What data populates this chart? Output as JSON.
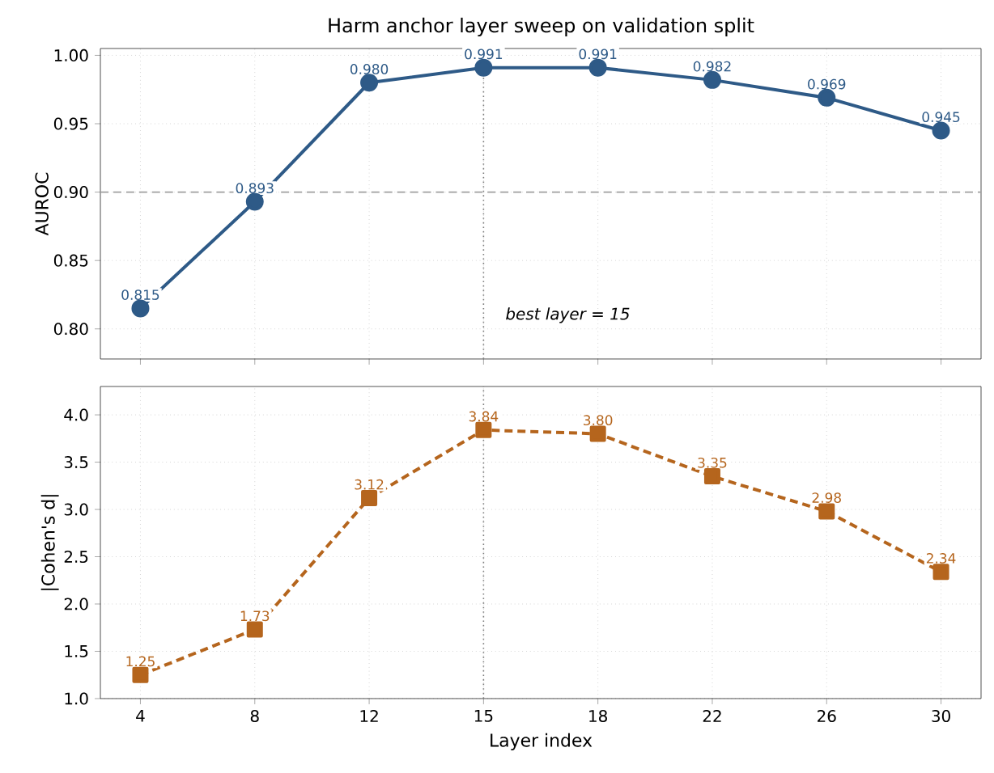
{
  "chart_data": [
    {
      "type": "line",
      "title": "Harm anchor layer sweep on validation split",
      "ylabel": "AUROC",
      "categories": [
        "4",
        "8",
        "12",
        "15",
        "18",
        "22",
        "26",
        "30"
      ],
      "series": [
        {
          "color": "#2e5a87",
          "values": [
            0.815,
            0.893,
            0.98,
            0.991,
            0.991,
            0.982,
            0.969,
            0.945
          ],
          "value_labels": [
            "0.815",
            "0.893",
            "0.980",
            "0.991",
            "0.991",
            "0.982",
            "0.969",
            "0.945"
          ]
        }
      ],
      "ylim": [
        0.778,
        1.005
      ],
      "yticks": [
        {
          "value": 0.8,
          "label": "0.80"
        },
        {
          "value": 0.85,
          "label": "0.85"
        },
        {
          "value": 0.9,
          "label": "0.90"
        },
        {
          "value": 0.95,
          "label": "0.95"
        },
        {
          "value": 1.0,
          "label": "1.00"
        }
      ],
      "ref_lines": [
        {
          "axis": "x",
          "value": "15",
          "color": "#808080",
          "line_style": "dotted"
        },
        {
          "axis": "y",
          "value": 0.9,
          "color": "#a0a0a0",
          "line_style": "dashed"
        }
      ],
      "annotations": [
        {
          "text": "best layer = 15",
          "x": "15",
          "y": 0.81
        }
      ],
      "grid": true,
      "marker": "circle",
      "line_style": "solid",
      "tick_labels": "y"
    },
    {
      "type": "line",
      "xlabel": "Layer index",
      "ylabel": "|Cohen's d|",
      "categories": [
        "4",
        "8",
        "12",
        "15",
        "18",
        "22",
        "26",
        "30"
      ],
      "series": [
        {
          "color": "#b5651d",
          "values": [
            1.25,
            1.73,
            3.12,
            3.84,
            3.8,
            3.35,
            2.98,
            2.34
          ],
          "value_labels": [
            "1.25",
            "1.73",
            "3.12",
            "3.84",
            "3.80",
            "3.35",
            "2.98",
            "2.34"
          ]
        }
      ],
      "ylim": [
        1.0,
        4.3
      ],
      "yticks": [
        {
          "value": 1.0,
          "label": "1.0"
        },
        {
          "value": 1.5,
          "label": "1.5"
        },
        {
          "value": 2.0,
          "label": "2.0"
        },
        {
          "value": 2.5,
          "label": "2.5"
        },
        {
          "value": 3.0,
          "label": "3.0"
        },
        {
          "value": 3.5,
          "label": "3.5"
        },
        {
          "value": 4.0,
          "label": "4.0"
        }
      ],
      "ref_lines": [
        {
          "axis": "x",
          "value": "15",
          "color": "#808080",
          "line_style": "dotted"
        }
      ],
      "grid": true,
      "marker": "square",
      "line_style": "dashed"
    }
  ]
}
